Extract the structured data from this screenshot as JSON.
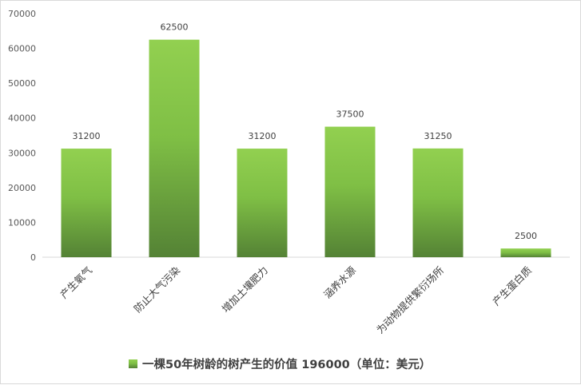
{
  "chart_data": {
    "type": "bar",
    "categories": [
      "产生氧气",
      "防止大气污染",
      "增加土壤肥力",
      "涵养水源",
      "为动物提供繁衍场所",
      "产生蛋白质"
    ],
    "series": [
      {
        "name": "一棵50年树龄的树产生的价值 196000（单位：美元）",
        "values": [
          31200,
          62500,
          31200,
          37500,
          31250,
          2500
        ]
      }
    ],
    "data_labels": [
      "31200",
      "62500",
      "31200",
      "37500",
      "31250",
      "2500"
    ],
    "y_ticks": [
      "0",
      "10000",
      "20000",
      "30000",
      "40000",
      "50000",
      "60000",
      "70000"
    ],
    "ylim": [
      0,
      70000
    ],
    "grid": false,
    "legend_position": "bottom",
    "bar_color_top": "#92d050",
    "bar_color_bottom": "#548235"
  }
}
